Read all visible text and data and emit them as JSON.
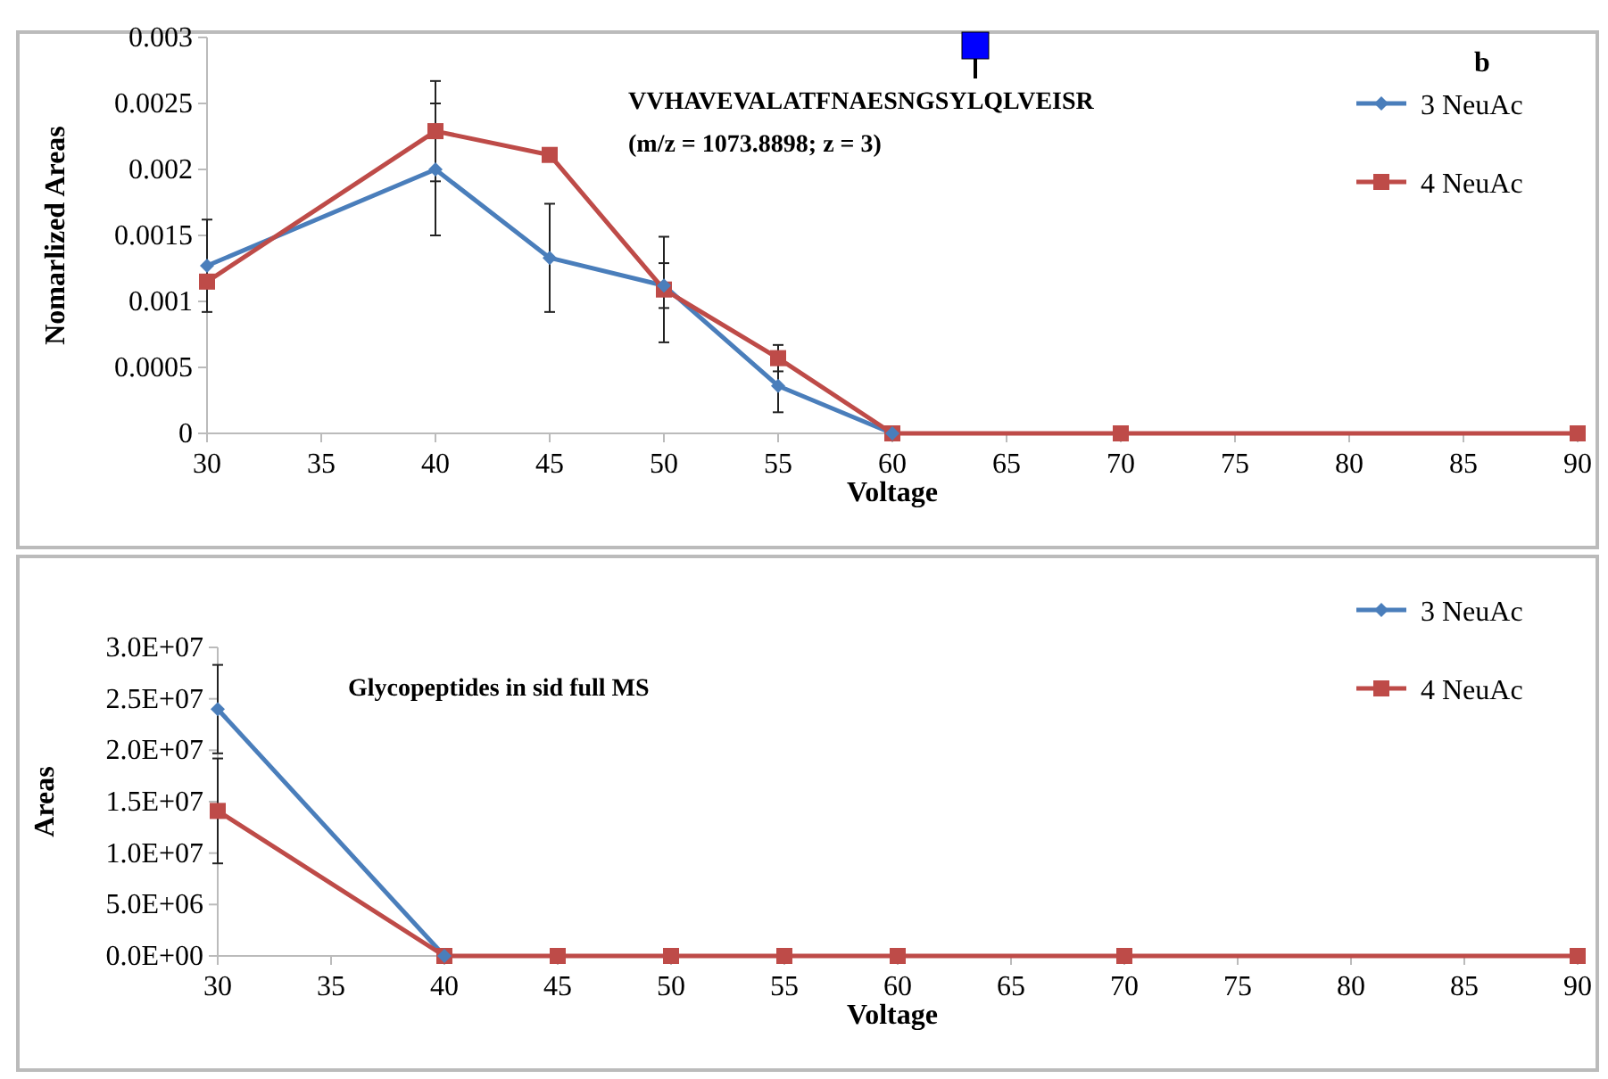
{
  "chart_data": [
    {
      "type": "line",
      "xlabel": "Voltage",
      "ylabel": "Nomarlized Areas",
      "annotations": [
        "VVHAVEVALATFNAESNGSYLQLVEISR",
        "(m/z = 1073.8898; z = 3)",
        "b"
      ],
      "x": [
        30,
        40,
        45,
        50,
        55,
        60,
        70,
        90
      ],
      "xlim": [
        30,
        90
      ],
      "xticks": [
        30,
        35,
        40,
        45,
        50,
        55,
        60,
        65,
        70,
        75,
        80,
        85,
        90
      ],
      "ylim": [
        0,
        0.003
      ],
      "yticks": [
        0,
        0.0005,
        0.001,
        0.0015,
        0.002,
        0.0025,
        0.003
      ],
      "grid": false,
      "legend": "right",
      "series": [
        {
          "name": "3 NeuAc",
          "color": "#4a7ebb",
          "marker": "diamond",
          "values": [
            0.00127,
            0.002,
            0.00133,
            0.00112,
            0.00036,
            0,
            null,
            null
          ],
          "errors": [
            0.00035,
            0.0005,
            0.00041,
            0.00017,
            0.0002,
            null,
            null,
            null
          ]
        },
        {
          "name": "4 NeuAc",
          "color": "#be4b48",
          "marker": "square",
          "values": [
            0.00115,
            0.00229,
            0.00211,
            0.00109,
            0.00057,
            0,
            0,
            0
          ],
          "errors": [
            null,
            0.00038,
            null,
            0.0004,
            0.0001,
            null,
            null,
            null
          ]
        }
      ]
    },
    {
      "type": "line",
      "xlabel": "Voltage",
      "ylabel": "Areas",
      "annotations": [
        "Glycopeptides in sid full MS"
      ],
      "x": [
        30,
        40,
        45,
        50,
        55,
        60,
        70,
        90
      ],
      "xlim": [
        30,
        90
      ],
      "xticks": [
        30,
        35,
        40,
        45,
        50,
        55,
        60,
        65,
        70,
        75,
        80,
        85,
        90
      ],
      "ylim": [
        0,
        30000000
      ],
      "yticks": [
        {
          "value": 0,
          "label": "0.0E+00"
        },
        {
          "value": 5000000,
          "label": "5.0E+06"
        },
        {
          "value": 10000000,
          "label": "1.0E+07"
        },
        {
          "value": 15000000,
          "label": "1.5E+07"
        },
        {
          "value": 20000000,
          "label": "2.0E+07"
        },
        {
          "value": 25000000,
          "label": "2.5E+07"
        },
        {
          "value": 30000000,
          "label": "3.0E+07"
        }
      ],
      "grid": false,
      "legend": "right",
      "series": [
        {
          "name": "3 NeuAc",
          "color": "#4a7ebb",
          "marker": "diamond",
          "values": [
            24000000,
            0,
            null,
            null,
            null,
            null,
            null,
            null
          ],
          "errors": [
            4300000,
            null,
            null,
            null,
            null,
            null,
            null,
            null
          ]
        },
        {
          "name": "4 NeuAc",
          "color": "#be4b48",
          "marker": "square",
          "values": [
            14100000,
            0,
            0,
            0,
            0,
            0,
            0,
            0
          ],
          "errors": [
            5100000,
            null,
            null,
            null,
            null,
            null,
            null,
            null
          ]
        }
      ]
    }
  ]
}
